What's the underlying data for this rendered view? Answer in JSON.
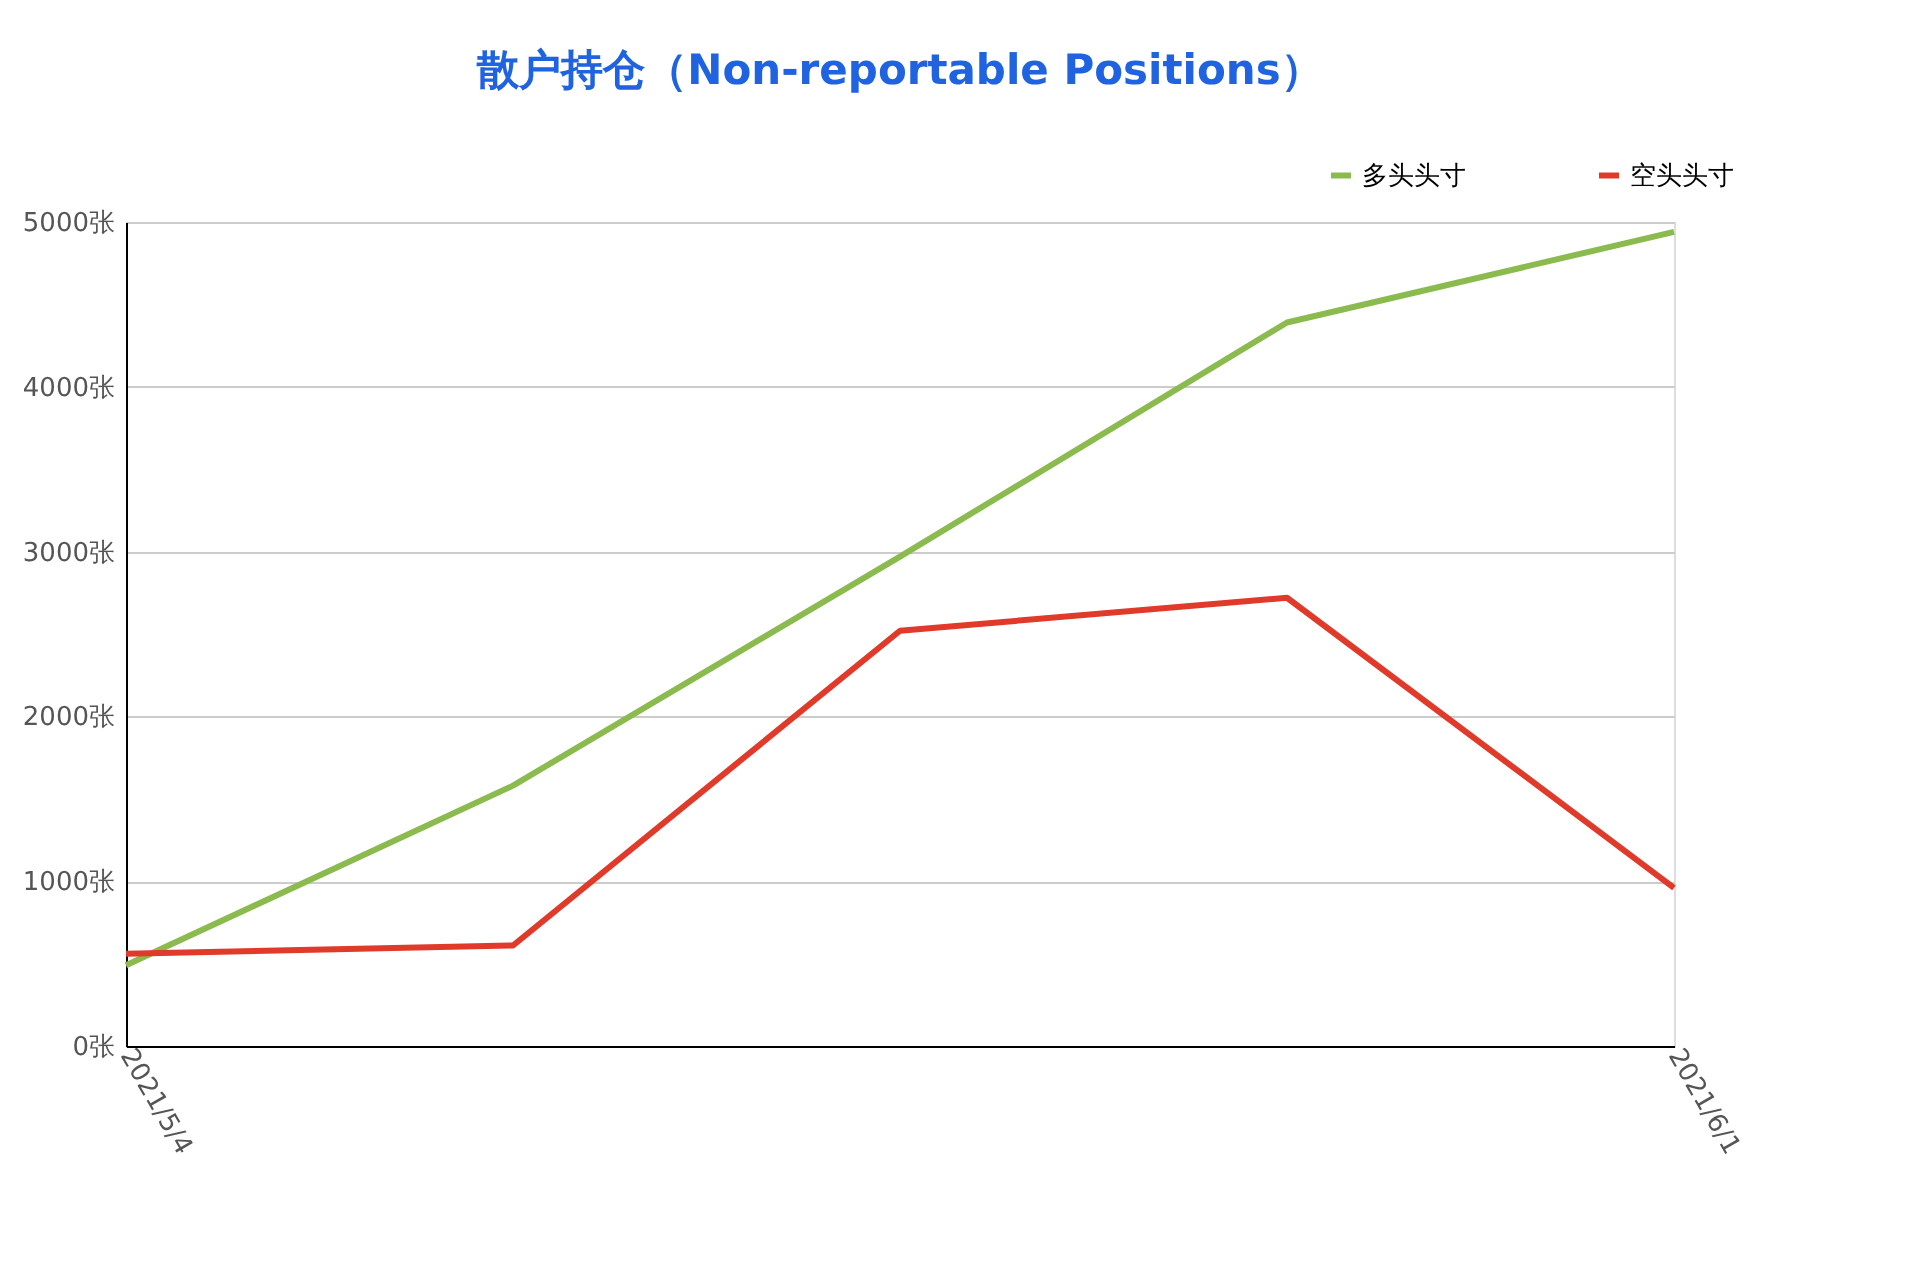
{
  "chart_data": {
    "type": "line",
    "title": "散户持仓（Non-reportable Positions）",
    "categories": [
      "2021/5/4",
      null,
      null,
      null,
      "2021/6/1"
    ],
    "series": [
      {
        "name": "多头头寸",
        "color": "#8bbb4f",
        "values": [
          490,
          1580,
          2970,
          4390,
          4940
        ]
      },
      {
        "name": "空头头寸",
        "color": "#e03a2a",
        "values": [
          560,
          610,
          2520,
          2720,
          960
        ]
      }
    ],
    "ylim": [
      0,
      5000
    ],
    "yticks": [
      {
        "value": 0,
        "label": "0张"
      },
      {
        "value": 1000,
        "label": "1000张"
      },
      {
        "value": 2000,
        "label": "2000张"
      },
      {
        "value": 3000,
        "label": "3000张"
      },
      {
        "value": 4000,
        "label": "4000张"
      },
      {
        "value": 5000,
        "label": "5000张"
      }
    ],
    "grid": "y",
    "legend": "top right",
    "marker": "none",
    "line_style": "solid"
  }
}
